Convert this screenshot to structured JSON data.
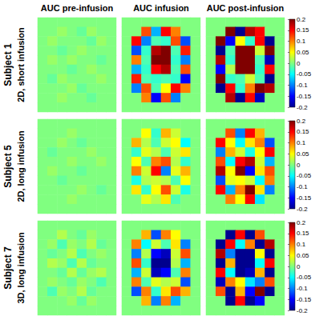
{
  "chart_data": {
    "type": "heatmap",
    "columns": [
      "AUC pre-infusion",
      "AUC infusion",
      "AUC post-infusion"
    ],
    "colorbar": {
      "range": [
        -0.2,
        0.2
      ],
      "ticks": [
        -0.2,
        -0.15,
        -0.1,
        -0.05,
        0,
        0.05,
        0.1,
        0.15,
        0.2
      ]
    },
    "rows": [
      {
        "title": "Subject 1",
        "subtitle": "2D, short infusion",
        "panels": [
          [
            [
              0,
              0,
              0,
              0,
              0,
              0,
              0,
              0
            ],
            [
              0,
              0,
              0.01,
              0,
              -0.01,
              0.01,
              0,
              0
            ],
            [
              0,
              0.01,
              0,
              0,
              0,
              -0.01,
              0.01,
              0
            ],
            [
              0,
              0,
              -0.01,
              0,
              0.01,
              0,
              0,
              0
            ],
            [
              0,
              0.01,
              0,
              0.01,
              0,
              0,
              -0.01,
              0
            ],
            [
              0,
              0,
              0,
              -0.01,
              0,
              0.01,
              0,
              0
            ],
            [
              0,
              -0.01,
              0.01,
              0,
              0,
              0,
              0.01,
              0
            ],
            [
              0,
              0,
              0,
              0.01,
              -0.01,
              0,
              0,
              0
            ],
            [
              0,
              0,
              0.01,
              0,
              0,
              -0.01,
              0,
              0
            ],
            [
              0,
              0,
              0,
              0,
              0,
              0,
              0,
              0
            ]
          ],
          [
            [
              0,
              0,
              0,
              0,
              0,
              0,
              0,
              0
            ],
            [
              0,
              0,
              0.12,
              -0.08,
              0.15,
              0.1,
              0,
              0
            ],
            [
              0,
              0.15,
              -0.1,
              -0.02,
              -0.03,
              0.12,
              -0.12,
              0
            ],
            [
              0,
              -0.12,
              -0.03,
              0.18,
              0.2,
              -0.02,
              0.14,
              0
            ],
            [
              0,
              0.1,
              -0.02,
              0.2,
              0.2,
              -0.03,
              -0.1,
              0
            ],
            [
              0,
              -0.08,
              -0.03,
              0.15,
              0.18,
              -0.02,
              0.12,
              0
            ],
            [
              0,
              0.14,
              -0.02,
              -0.03,
              -0.02,
              -0.03,
              -0.15,
              0
            ],
            [
              0,
              -0.1,
              0.12,
              -0.02,
              0.05,
              0.15,
              0.1,
              0
            ],
            [
              0,
              0,
              0.1,
              -0.15,
              0.12,
              -0.1,
              0,
              0
            ],
            [
              0,
              0,
              0,
              0,
              0,
              0,
              0,
              0
            ]
          ],
          [
            [
              0,
              0,
              0,
              0,
              0,
              0,
              0,
              0
            ],
            [
              0,
              0,
              0.2,
              -0.2,
              0.18,
              0.15,
              0,
              0
            ],
            [
              0,
              0.2,
              -0.15,
              0.05,
              -0.03,
              0.15,
              -0.2,
              0
            ],
            [
              0,
              -0.2,
              -0.02,
              0.2,
              0.2,
              0.03,
              0.2,
              0
            ],
            [
              0,
              0.18,
              -0.03,
              0.2,
              0.2,
              -0.02,
              -0.18,
              0
            ],
            [
              0,
              -0.15,
              0.02,
              0.2,
              0.2,
              -0.03,
              0.15,
              0
            ],
            [
              0,
              0.2,
              -0.03,
              -0.02,
              0.03,
              -0.02,
              -0.2,
              0
            ],
            [
              0,
              -0.2,
              0.15,
              -0.03,
              0.1,
              0.2,
              0.18,
              0
            ],
            [
              0,
              0,
              0.18,
              -0.2,
              0.15,
              -0.18,
              0,
              0
            ],
            [
              0,
              0,
              0,
              0,
              0,
              0,
              0,
              0
            ]
          ]
        ]
      },
      {
        "title": "Subject 5",
        "subtitle": "2D, long infusion",
        "panels": [
          [
            [
              0,
              0,
              0,
              0,
              0,
              0,
              0,
              0
            ],
            [
              0,
              0,
              0,
              0.01,
              0,
              0,
              0,
              0
            ],
            [
              0,
              0,
              0.01,
              0,
              -0.01,
              0,
              0,
              0
            ],
            [
              0,
              -0.01,
              0,
              0,
              0,
              0.01,
              0,
              0
            ],
            [
              0,
              0,
              0,
              0.01,
              0,
              0,
              0.01,
              0
            ],
            [
              0,
              0.01,
              0,
              0,
              -0.01,
              0,
              0,
              0
            ],
            [
              0,
              0,
              -0.01,
              0,
              0,
              0,
              0,
              0
            ],
            [
              0,
              0,
              0,
              0,
              0.01,
              0,
              -0.01,
              0
            ],
            [
              0,
              0,
              0,
              0.01,
              0,
              0,
              0,
              0
            ],
            [
              0,
              0,
              0,
              0,
              0,
              0,
              0,
              0
            ]
          ],
          [
            [
              0,
              0,
              0,
              0,
              0,
              0,
              0,
              0
            ],
            [
              0,
              0,
              0.05,
              -0.03,
              0.08,
              0.03,
              0,
              0
            ],
            [
              0,
              0.08,
              0.02,
              -0.02,
              0.03,
              0.05,
              -0.05,
              0
            ],
            [
              0,
              -0.03,
              0.04,
              0.02,
              -0.02,
              0.03,
              0.06,
              0
            ],
            [
              0,
              0.05,
              -0.02,
              0.1,
              0.12,
              0.02,
              -0.03,
              0
            ],
            [
              0,
              0.1,
              0.03,
              0.15,
              -0.1,
              0.04,
              0.08,
              0
            ],
            [
              0,
              -0.04,
              0.02,
              0.03,
              0.02,
              -0.02,
              0.05,
              0
            ],
            [
              0,
              0.06,
              -0.03,
              0.05,
              0.12,
              0.03,
              -0.04,
              0
            ],
            [
              0,
              0,
              0.04,
              0.02,
              0.06,
              -0.02,
              0,
              0
            ],
            [
              0,
              0,
              0,
              0,
              0,
              0,
              0,
              0
            ]
          ],
          [
            [
              0,
              0,
              0,
              0,
              0,
              0,
              0,
              0
            ],
            [
              0,
              0,
              0.12,
              -0.1,
              0.15,
              0.08,
              0,
              0
            ],
            [
              0,
              0.15,
              0.05,
              -0.05,
              0.06,
              0.1,
              -0.12,
              0
            ],
            [
              0,
              -0.1,
              0.08,
              0.03,
              -0.04,
              0.05,
              0.15,
              0
            ],
            [
              0,
              0.12,
              -0.05,
              0.15,
              0.18,
              0.03,
              -0.08,
              0
            ],
            [
              0,
              0.18,
              0.05,
              0.2,
              -0.15,
              0.06,
              0.12,
              0
            ],
            [
              0,
              -0.12,
              0.04,
              0.05,
              0.03,
              -0.05,
              0.1,
              0
            ],
            [
              0,
              0.15,
              -0.08,
              0.1,
              0.2,
              0.06,
              -0.1,
              0
            ],
            [
              0,
              0,
              0.1,
              0.05,
              0.15,
              -0.06,
              0,
              0
            ],
            [
              0,
              0,
              0,
              0,
              0,
              0,
              0,
              0
            ]
          ]
        ]
      },
      {
        "title": "Subject 7",
        "subtitle": "3D, long infusion",
        "panels": [
          [
            [
              0,
              0,
              0,
              0,
              0,
              0,
              0,
              0
            ],
            [
              0,
              0,
              0.02,
              0,
              -0.01,
              0.01,
              0,
              0
            ],
            [
              0,
              0.01,
              -0.02,
              0.01,
              0,
              0.02,
              -0.01,
              0
            ],
            [
              0,
              -0.01,
              0,
              0.02,
              -0.02,
              0,
              0.01,
              0
            ],
            [
              0,
              0.02,
              0.01,
              -0.02,
              0.02,
              -0.01,
              0,
              0
            ],
            [
              0,
              0,
              -0.01,
              0.02,
              -0.01,
              0.01,
              0.02,
              0
            ],
            [
              0,
              0.01,
              0,
              -0.01,
              0.01,
              0,
              -0.02,
              0
            ],
            [
              0,
              -0.02,
              0.01,
              0,
              0.02,
              -0.01,
              0,
              0
            ],
            [
              0,
              0,
              0,
              0.01,
              -0.01,
              0.01,
              0,
              0
            ],
            [
              0,
              0,
              0,
              0,
              0,
              0,
              0,
              0
            ]
          ],
          [
            [
              0,
              0,
              0,
              0,
              0,
              0,
              0,
              0
            ],
            [
              0,
              0,
              0.08,
              -0.12,
              0.1,
              0.05,
              0,
              0
            ],
            [
              0,
              0.1,
              -0.05,
              0.03,
              -0.02,
              0.06,
              -0.1,
              0
            ],
            [
              0,
              -0.1,
              0.02,
              -0.15,
              -0.18,
              0.03,
              0.12,
              0
            ],
            [
              0,
              0.12,
              -0.03,
              -0.2,
              -0.2,
              0.02,
              -0.08,
              0
            ],
            [
              0,
              -0.08,
              0.03,
              -0.18,
              -0.15,
              -0.02,
              0.1,
              0
            ],
            [
              0,
              0.1,
              -0.02,
              0.04,
              0.02,
              0.03,
              -0.12,
              0
            ],
            [
              0,
              -0.12,
              0.1,
              -0.03,
              0.06,
              0.12,
              0.08,
              0
            ],
            [
              0,
              0,
              0.08,
              -0.1,
              0.1,
              -0.08,
              0,
              0
            ],
            [
              0,
              0,
              0,
              0,
              0,
              0,
              0,
              0
            ]
          ],
          [
            [
              0,
              0,
              0,
              0,
              0,
              0,
              0,
              0
            ],
            [
              0,
              0,
              -0.2,
              0.15,
              -0.2,
              0.12,
              0,
              0
            ],
            [
              0,
              -0.2,
              0.15,
              -0.05,
              0.1,
              -0.2,
              0.18,
              0
            ],
            [
              0,
              0.18,
              -0.1,
              -0.2,
              -0.2,
              0.05,
              -0.2,
              0
            ],
            [
              0,
              -0.2,
              0.08,
              -0.2,
              -0.2,
              -0.05,
              0.15,
              0
            ],
            [
              0,
              0.15,
              -0.05,
              -0.2,
              -0.18,
              0.08,
              -0.2,
              0
            ],
            [
              0,
              -0.18,
              0.1,
              0.05,
              -0.06,
              -0.1,
              0.12,
              0
            ],
            [
              0,
              0.12,
              -0.2,
              0.08,
              -0.15,
              0.2,
              -0.2,
              0
            ],
            [
              0,
              0,
              -0.2,
              0.15,
              -0.2,
              -0.15,
              0,
              0
            ],
            [
              0,
              0,
              0,
              0,
              0,
              0,
              0,
              0
            ]
          ]
        ]
      }
    ]
  }
}
